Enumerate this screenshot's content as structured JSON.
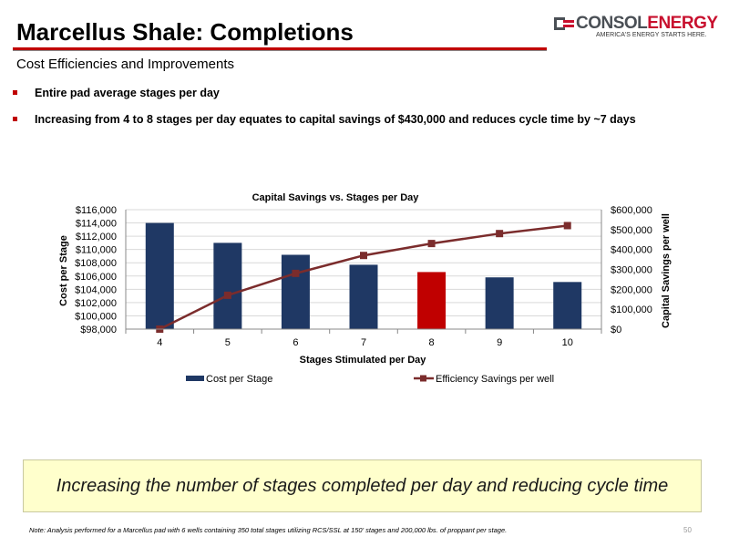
{
  "header": {
    "title": "Marcellus Shale: Completions",
    "subtitle": "Cost Efficiencies and Improvements"
  },
  "logo": {
    "name_part1": "CONSOL",
    "name_part2": "ENERGY",
    "tagline": "AMERICA'S ENERGY STARTS HERE."
  },
  "bullets": [
    "Entire pad average stages per day",
    "Increasing from 4 to 8 stages per day equates to capital savings of $430,000 and reduces cycle time by ~7 days"
  ],
  "chart_data": {
    "type": "bar",
    "title": "Capital Savings vs. Stages per Day",
    "xlabel": "Stages Stimulated per Day",
    "ylabel": "Cost per Stage",
    "y2label": "Capital Savings per  well",
    "categories": [
      "4",
      "5",
      "6",
      "7",
      "8",
      "9",
      "10"
    ],
    "ylim": [
      98000,
      116000
    ],
    "y_ticks": [
      "$98,000",
      "$100,000",
      "$102,000",
      "$104,000",
      "$106,000",
      "$108,000",
      "$110,000",
      "$112,000",
      "$114,000",
      "$116,000"
    ],
    "y2lim": [
      0,
      600000
    ],
    "y2_ticks": [
      "$0",
      "$100,000",
      "$200,000",
      "$300,000",
      "$400,000",
      "$500,000",
      "$600,000"
    ],
    "grid": true,
    "legend_position": "bottom",
    "highlight_category": "8",
    "series": [
      {
        "name": "Cost per Stage",
        "type": "bar",
        "axis": "left",
        "color": "#1f3864",
        "highlight_color": "#c00000",
        "values": [
          114000,
          111000,
          109200,
          107700,
          106600,
          105800,
          105100
        ]
      },
      {
        "name": "Efficiency Savings per well",
        "type": "line",
        "axis": "right",
        "color": "#7b2c2c",
        "values": [
          0,
          170000,
          280000,
          370000,
          430000,
          480000,
          520000
        ]
      }
    ]
  },
  "callout": "Increasing the number of stages completed per day and reducing cycle time",
  "footer": {
    "note": "Note:  Analysis performed for a Marcellus pad with 6 wells containing 350 total stages utilizing RCS/SSL at 150' stages and 200,000 lbs. of proppant per stage.",
    "page_number": "50"
  }
}
